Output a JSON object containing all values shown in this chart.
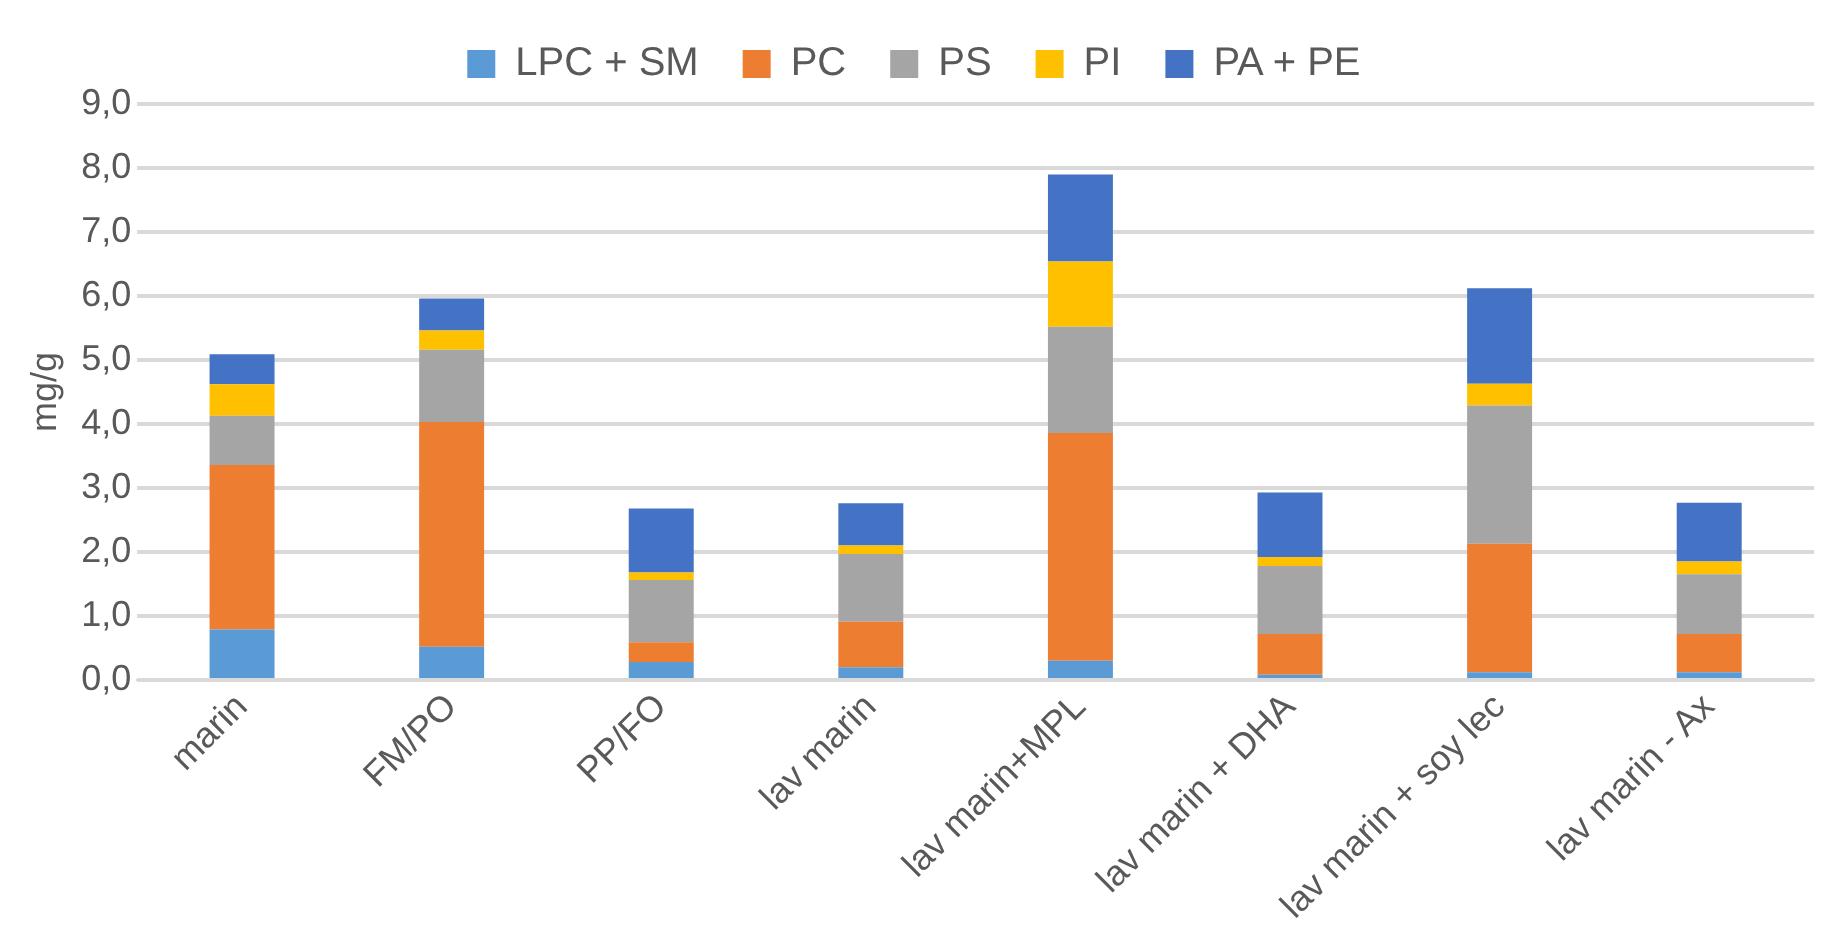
{
  "chart_data": {
    "type": "bar",
    "stacked": true,
    "ylabel": "mg/g",
    "categories": [
      "marin",
      "FM/PO",
      "PP/FO",
      "lav marin",
      "lav marin+MPL",
      "lav marin + DHA",
      "lav marin + soy lec",
      "lav marin - Ax"
    ],
    "series": [
      {
        "name": "LPC + SM",
        "color": "#5b9bd5",
        "values": [
          0.79,
          0.52,
          0.28,
          0.2,
          0.3,
          0.08,
          0.12,
          0.12
        ]
      },
      {
        "name": "PC",
        "color": "#ed7d31",
        "values": [
          2.57,
          3.51,
          0.31,
          0.71,
          3.56,
          0.64,
          2.01,
          0.6
        ]
      },
      {
        "name": "PS",
        "color": "#a5a5a5",
        "values": [
          0.77,
          1.13,
          0.97,
          1.06,
          1.66,
          1.06,
          2.16,
          0.93
        ]
      },
      {
        "name": "PI",
        "color": "#ffc000",
        "values": [
          0.49,
          0.3,
          0.12,
          0.13,
          1.02,
          0.14,
          0.34,
          0.2
        ]
      },
      {
        "name": "PA + PE",
        "color": "#4472c4",
        "values": [
          0.47,
          0.5,
          1.0,
          0.66,
          1.36,
          1.01,
          1.49,
          0.92
        ]
      }
    ],
    "ylim": [
      0,
      9
    ],
    "yticks": [
      {
        "value": 0,
        "label": "0,0"
      },
      {
        "value": 1,
        "label": "1,0"
      },
      {
        "value": 2,
        "label": "2,0"
      },
      {
        "value": 3,
        "label": "3,0"
      },
      {
        "value": 4,
        "label": "4,0"
      },
      {
        "value": 5,
        "label": "5,0"
      },
      {
        "value": 6,
        "label": "6,0"
      },
      {
        "value": 7,
        "label": "7,0"
      },
      {
        "value": 8,
        "label": "8,0"
      },
      {
        "value": 9,
        "label": "9,0"
      }
    ],
    "grid": "y",
    "legend": "top"
  }
}
